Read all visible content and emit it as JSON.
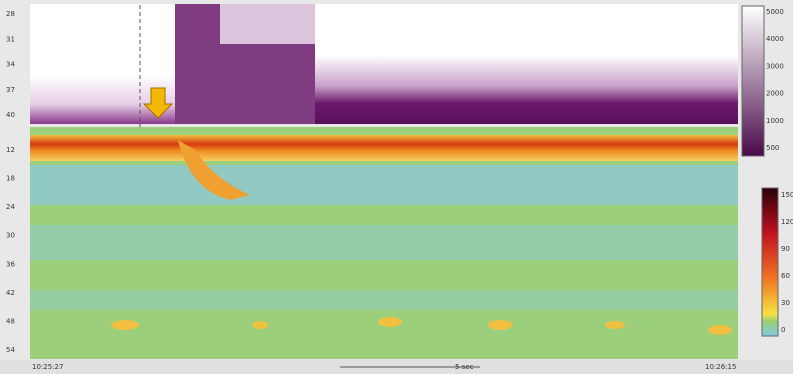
{
  "top_panel": {
    "y_labels": [
      "28",
      "31",
      "34",
      "37",
      "40"
    ]
  },
  "bottom_panel": {
    "y_labels": [
      "12",
      "18",
      "24",
      "30",
      "36",
      "42",
      "48",
      "54"
    ]
  },
  "impedance_scale": {
    "labels": [
      "5000",
      "4000",
      "3000",
      "2000",
      "1000",
      "500"
    ]
  },
  "pressure_scale": {
    "labels": [
      "150",
      "120",
      "90",
      "60",
      "30",
      "0"
    ]
  },
  "footer": {
    "start": "10:25:27",
    "span": "5 sec",
    "end": "10:26:15"
  }
}
